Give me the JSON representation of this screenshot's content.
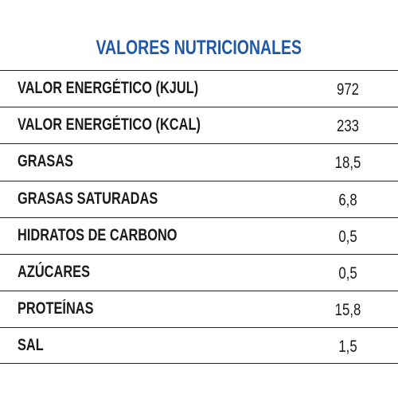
{
  "title": "VALORES NUTRICIONALES",
  "table": {
    "rows": [
      [
        "VALOR ENERGÉTICO (KJUL)",
        "972"
      ],
      [
        "VALOR ENERGÉTICO (KCAL)",
        "233"
      ],
      [
        "GRASAS",
        "18,5"
      ],
      [
        "GRASAS SATURADAS",
        "6,8"
      ],
      [
        "HIDRATOS DE CARBONO",
        "0,5"
      ],
      [
        "AZÚCARES",
        "0,5"
      ],
      [
        "PROTEÍNAS",
        "15,8"
      ],
      [
        "SAL",
        "1,5"
      ]
    ]
  }
}
